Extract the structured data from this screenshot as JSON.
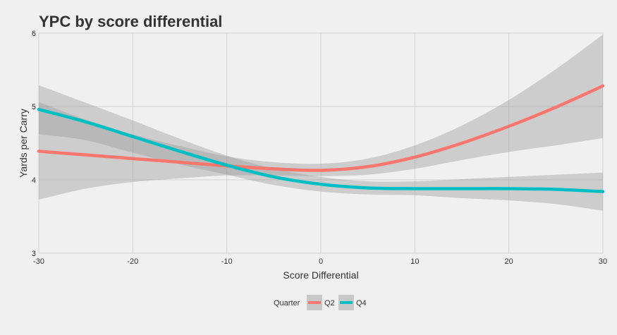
{
  "chart_data": {
    "type": "line",
    "title": "YPC by score differential",
    "xlabel": "Score Differential",
    "ylabel": "Yards per Carry",
    "xlim": [
      -30,
      30
    ],
    "ylim": [
      3,
      6
    ],
    "x_ticks": [
      -30,
      -20,
      -10,
      0,
      10,
      20,
      30
    ],
    "y_ticks": [
      3,
      4,
      5,
      6
    ],
    "grid": true,
    "legend": {
      "title": "Quarter",
      "position": "bottom"
    },
    "series": [
      {
        "name": "Q2",
        "color": "#f8766d",
        "points": [
          [
            -30,
            4.39
          ],
          [
            -25,
            4.34
          ],
          [
            -20,
            4.29
          ],
          [
            -15,
            4.24
          ],
          [
            -10,
            4.19
          ],
          [
            -5,
            4.15
          ],
          [
            0,
            4.13
          ],
          [
            5,
            4.18
          ],
          [
            10,
            4.31
          ],
          [
            15,
            4.5
          ],
          [
            20,
            4.73
          ],
          [
            25,
            4.99
          ],
          [
            30,
            5.28
          ]
        ],
        "ci_upper": [
          [
            -30,
            5.06
          ],
          [
            -25,
            4.82
          ],
          [
            -20,
            4.62
          ],
          [
            -15,
            4.46
          ],
          [
            -10,
            4.32
          ],
          [
            -5,
            4.24
          ],
          [
            0,
            4.22
          ],
          [
            5,
            4.29
          ],
          [
            10,
            4.47
          ],
          [
            15,
            4.74
          ],
          [
            20,
            5.09
          ],
          [
            25,
            5.51
          ],
          [
            30,
            5.98
          ]
        ],
        "ci_lower": [
          [
            -30,
            3.73
          ],
          [
            -25,
            3.88
          ],
          [
            -20,
            3.97
          ],
          [
            -15,
            4.02
          ],
          [
            -10,
            4.06
          ],
          [
            -5,
            4.06
          ],
          [
            0,
            4.05
          ],
          [
            5,
            4.07
          ],
          [
            10,
            4.15
          ],
          [
            15,
            4.27
          ],
          [
            20,
            4.38
          ],
          [
            25,
            4.47
          ],
          [
            30,
            4.57
          ]
        ]
      },
      {
        "name": "Q4",
        "color": "#00bfc4",
        "points": [
          [
            -30,
            4.96
          ],
          [
            -25,
            4.79
          ],
          [
            -20,
            4.59
          ],
          [
            -15,
            4.39
          ],
          [
            -10,
            4.2
          ],
          [
            -5,
            4.04
          ],
          [
            0,
            3.94
          ],
          [
            5,
            3.89
          ],
          [
            10,
            3.88
          ],
          [
            15,
            3.88
          ],
          [
            20,
            3.88
          ],
          [
            25,
            3.87
          ],
          [
            30,
            3.84
          ]
        ],
        "ci_upper": [
          [
            -30,
            5.29
          ],
          [
            -25,
            5.05
          ],
          [
            -20,
            4.81
          ],
          [
            -15,
            4.56
          ],
          [
            -10,
            4.33
          ],
          [
            -5,
            4.15
          ],
          [
            0,
            4.04
          ],
          [
            5,
            3.98
          ],
          [
            10,
            3.98
          ],
          [
            15,
            4.01
          ],
          [
            20,
            4.04
          ],
          [
            25,
            4.07
          ],
          [
            30,
            4.1
          ]
        ],
        "ci_lower": [
          [
            -30,
            4.62
          ],
          [
            -25,
            4.54
          ],
          [
            -20,
            4.37
          ],
          [
            -15,
            4.21
          ],
          [
            -10,
            4.07
          ],
          [
            -5,
            3.93
          ],
          [
            0,
            3.84
          ],
          [
            5,
            3.8
          ],
          [
            10,
            3.79
          ],
          [
            15,
            3.75
          ],
          [
            20,
            3.72
          ],
          [
            25,
            3.67
          ],
          [
            30,
            3.58
          ]
        ]
      }
    ]
  }
}
